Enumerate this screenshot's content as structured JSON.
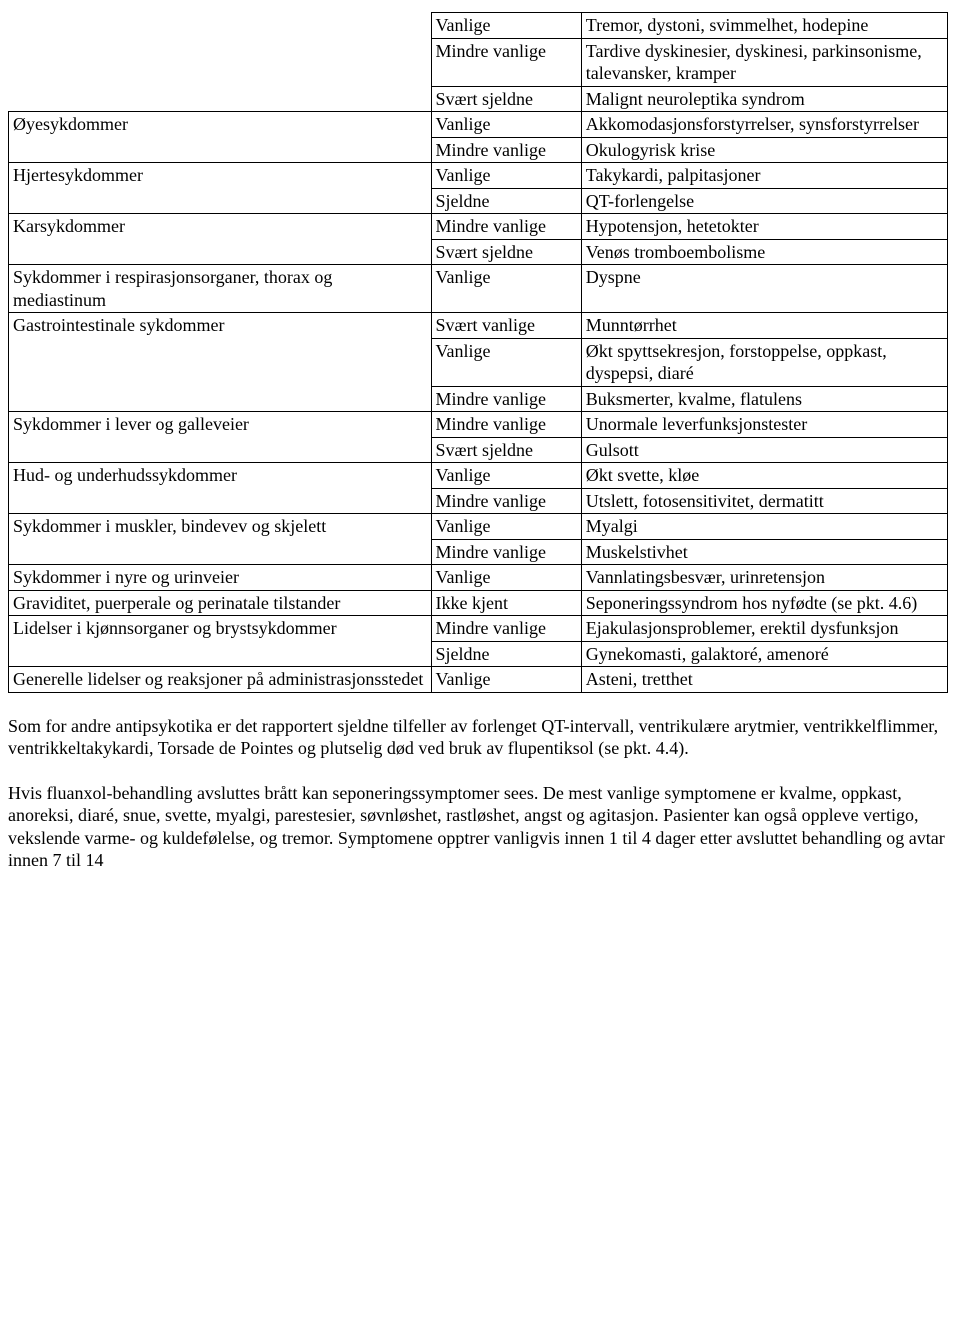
{
  "table": {
    "rows": [
      {
        "soc": "",
        "freq": "Vanlige",
        "reaction": "Tremor, dystoni, svimmelhet, hodepine"
      },
      {
        "soc": "",
        "freq": "Mindre vanlige",
        "reaction": "Tardive dyskinesier, dyskinesi, parkinsonisme, talevansker, kramper"
      },
      {
        "soc": "",
        "freq": "Svært sjeldne",
        "reaction": "Malignt neuroleptika syndrom"
      },
      {
        "soc": "Øyesykdommer",
        "freq": "Vanlige",
        "reaction": "Akkomodasjonsforstyrrelser, synsforstyrrelser"
      },
      {
        "soc": "",
        "freq": "Mindre vanlige",
        "reaction": "Okulogyrisk krise"
      },
      {
        "soc": "Hjertesykdommer",
        "freq": "Vanlige",
        "reaction": "Takykardi, palpitasjoner"
      },
      {
        "soc": "",
        "freq": "Sjeldne",
        "reaction": "QT-forlengelse"
      },
      {
        "soc": "Karsykdommer",
        "freq": "Mindre vanlige",
        "reaction": "Hypotensjon, hetetokter"
      },
      {
        "soc": "",
        "freq": "Svært sjeldne",
        "reaction": "Venøs tromboembolisme"
      },
      {
        "soc": "Sykdommer i respirasjonsorganer, thorax og mediastinum",
        "freq": "Vanlige",
        "reaction": "Dyspne"
      },
      {
        "soc": "Gastrointestinale sykdommer",
        "freq": "Svært vanlige",
        "reaction": "Munntørrhet"
      },
      {
        "soc": "",
        "freq": "Vanlige",
        "reaction": "Økt spyttsekresjon, forstoppelse, oppkast, dyspepsi, diaré"
      },
      {
        "soc": "",
        "freq": "Mindre vanlige",
        "reaction": "Buksmerter, kvalme, flatulens"
      },
      {
        "soc": "Sykdommer i lever og galleveier",
        "freq": "Mindre vanlige",
        "reaction": "Unormale leverfunksjonstester"
      },
      {
        "soc": "",
        "freq": "Svært sjeldne",
        "reaction": "Gulsott"
      },
      {
        "soc": "Hud- og underhudssykdommer",
        "freq": "Vanlige",
        "reaction": "Økt svette, kløe"
      },
      {
        "soc": "",
        "freq": "Mindre vanlige",
        "reaction": "Utslett, fotosensitivitet, dermatitt"
      },
      {
        "soc": "Sykdommer i  muskler, bindevev og skjelett",
        "freq": "Vanlige",
        "reaction": "Myalgi"
      },
      {
        "soc": "",
        "freq": "Mindre vanlige",
        "reaction": "Muskelstivhet"
      },
      {
        "soc": "Sykdommer i nyre og urinveier",
        "freq": "Vanlige",
        "reaction": "Vannlatingsbesvær, urinretensjon"
      },
      {
        "soc": "Graviditet, puerperale og perinatale tilstander",
        "freq": "Ikke kjent",
        "reaction": "Seponeringssyndrom hos nyfødte (se pkt. 4.6)"
      },
      {
        "soc": "Lidelser i kjønnsorganer og brystsykdommer",
        "freq": "Mindre vanlige",
        "reaction": "Ejakulasjonsproblemer, erektil dysfunksjon"
      },
      {
        "soc": "",
        "freq": "Sjeldne",
        "reaction": "Gynekomasti, galaktoré, amenoré"
      },
      {
        "soc": "Generelle lidelser og reaksjoner på administrasjonsstedet",
        "freq": "Vanlige",
        "reaction": "Asteni, tretthet"
      }
    ]
  },
  "paragraphs": {
    "p1": "Som for andre antipsykotika er det rapportert sjeldne tilfeller av forlenget QT-intervall, ventrikulære arytmier, ventrikkelflimmer, ventrikkeltakykardi, Torsade de Pointes og plutselig død ved bruk av flupentiksol (se pkt. 4.4).",
    "p2": "Hvis fluanxol-behandling avsluttes brått kan seponeringssymptomer sees. De mest vanlige symptomene er kvalme, oppkast, anoreksi, diaré, snue, svette, myalgi, parestesier, søvnløshet, rastløshet, angst og agitasjon. Pasienter kan også oppleve vertigo, vekslende varme- og kuldefølelse, og tremor. Symptomene opptrer vanligvis innen 1 til 4 dager etter avsluttet behandling og avtar innen 7 til 14"
  }
}
